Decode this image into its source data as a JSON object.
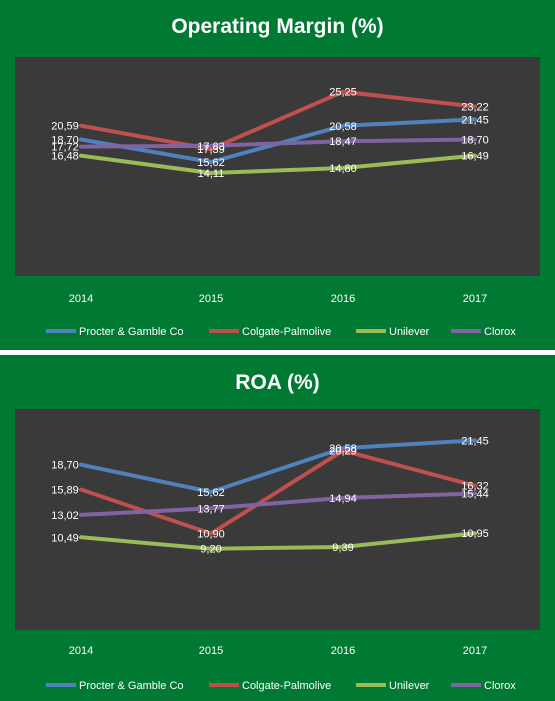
{
  "chart_data": [
    {
      "type": "line",
      "title": "Operating Margin (%)",
      "categories": [
        "2014",
        "2015",
        "2016",
        "2017"
      ],
      "ylim": [
        0,
        30
      ],
      "grid": false,
      "legend_position": "bottom",
      "series": [
        {
          "name": "Procter & Gamble Co",
          "color": "#4f81bd",
          "values": [
            18.7,
            15.62,
            20.58,
            21.45
          ],
          "labels": [
            "18,70",
            "15,62",
            "20,58",
            "21,45"
          ]
        },
        {
          "name": "Colgate-Palmolive",
          "color": "#c0504d",
          "values": [
            20.59,
            17.39,
            25.25,
            23.22
          ],
          "labels": [
            "20,59",
            "17,39",
            "25,25",
            "23,22"
          ]
        },
        {
          "name": "Unilever",
          "color": "#9bbb59",
          "values": [
            16.48,
            14.11,
            14.8,
            16.49
          ],
          "labels": [
            "16,48",
            "14,11",
            "14,80",
            "16,49"
          ]
        },
        {
          "name": "Clorox",
          "color": "#8064a2",
          "values": [
            17.72,
            17.83,
            18.47,
            18.7
          ],
          "labels": [
            "17,72",
            "17,83",
            "18,47",
            "18,70"
          ]
        }
      ]
    },
    {
      "type": "line",
      "title": "ROA (%)",
      "categories": [
        "2014",
        "2015",
        "2016",
        "2017"
      ],
      "ylim": [
        0,
        25
      ],
      "grid": false,
      "legend_position": "bottom",
      "series": [
        {
          "name": "Procter & Gamble Co",
          "color": "#4f81bd",
          "values": [
            18.7,
            15.62,
            20.58,
            21.45
          ],
          "labels": [
            "18,70",
            "15,62",
            "20,58",
            "21,45"
          ]
        },
        {
          "name": "Colgate-Palmolive",
          "color": "#c0504d",
          "values": [
            15.89,
            10.9,
            20.29,
            16.32
          ],
          "labels": [
            "15,89",
            "10,90",
            "20,29",
            "16,32"
          ]
        },
        {
          "name": "Unilever",
          "color": "#9bbb59",
          "values": [
            10.49,
            9.2,
            9.39,
            10.95
          ],
          "labels": [
            "10,49",
            "9,20",
            "9,39",
            "10,95"
          ]
        },
        {
          "name": "Clorox",
          "color": "#8064a2",
          "values": [
            13.02,
            13.77,
            14.94,
            15.44
          ],
          "labels": [
            "13,02",
            "13,77",
            "14,94",
            "15,44"
          ]
        }
      ]
    }
  ]
}
